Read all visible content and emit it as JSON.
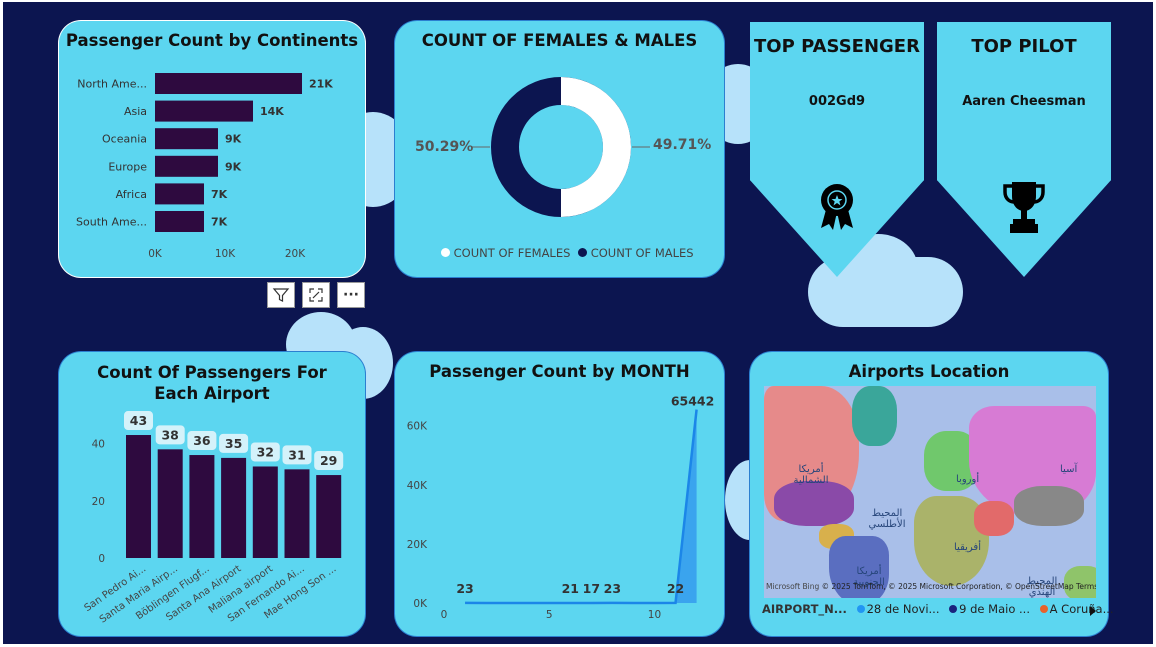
{
  "colors": {
    "background": "#0c1550",
    "card": "#5cd6f0",
    "bar": "#2e0a3f",
    "line": "#1b86e8",
    "cloud": "#b7e2fa"
  },
  "continents": {
    "title": "Passenger Count by Continents",
    "categories": [
      "North Ame...",
      "Asia",
      "Oceania",
      "Europe",
      "Africa",
      "South Ame..."
    ],
    "values": [
      21000,
      14000,
      9000,
      9000,
      7000,
      7000
    ],
    "value_labels": [
      "21K",
      "14K",
      "9K",
      "9K",
      "7K",
      "7K"
    ],
    "x_ticks": [
      "0K",
      "10K",
      "20K"
    ]
  },
  "gender": {
    "title": "COUNT OF FEMALES & MALES",
    "females_pct": "49.71%",
    "males_pct": "50.29%",
    "legend_females": "COUNT OF FEMALES",
    "legend_males": "COUNT OF MALES"
  },
  "top_passenger": {
    "title": "TOP PASSENGER",
    "value": "002Gd9",
    "icon": "award-ribbon-icon"
  },
  "top_pilot": {
    "title": "TOP PILOT",
    "value": "Aaren Cheesman",
    "icon": "trophy-icon"
  },
  "visual_toolbar": {
    "icons": [
      "filter-icon",
      "focus-mode-icon",
      "more-options-icon"
    ],
    "more_label": "···"
  },
  "airports": {
    "title": "Count Of Passengers For Each Airport",
    "y_ticks": [
      "0",
      "20",
      "40"
    ]
  },
  "months": {
    "title": "Passenger Count by MONTH",
    "y_ticks": [
      "0K",
      "20K",
      "40K",
      "60K"
    ],
    "x_ticks": [
      "0",
      "5",
      "10"
    ]
  },
  "map": {
    "title": "Airports Location",
    "labels": [
      "أمريكا الشمالية",
      "المحيط الأطلسي",
      "أوروبا",
      "آسيا",
      "أفريقيا",
      "أمريكا الجنوبية",
      "المحيط الهندي"
    ],
    "attribution_brand": "Microsoft Bing",
    "attribution": "© 2025 TomTom, © 2025 Microsoft Corporation, © OpenStreetMap Terms",
    "legend_field": "AIRPORT_N...",
    "legend_items": [
      {
        "label": "28 de Novi...",
        "color": "#2196f3"
      },
      {
        "label": "9 de Maio ...",
        "color": "#1a237e"
      },
      {
        "label": "A Coruña...",
        "color": "#e8622c"
      }
    ],
    "next_icon": "chevron-right-icon"
  },
  "chart_data": [
    {
      "type": "bar",
      "orientation": "horizontal",
      "title": "Passenger Count by Continents",
      "categories": [
        "North Ame...",
        "Asia",
        "Oceania",
        "Europe",
        "Africa",
        "South Ame..."
      ],
      "values": [
        21000,
        14000,
        9000,
        9000,
        7000,
        7000
      ],
      "xlim": [
        0,
        24000
      ]
    },
    {
      "type": "pie",
      "title": "COUNT OF FEMALES & MALES",
      "categories": [
        "COUNT OF FEMALES",
        "COUNT OF MALES"
      ],
      "values": [
        49.71,
        50.29
      ]
    },
    {
      "type": "bar",
      "title": "Count Of Passengers For Each Airport",
      "categories": [
        "San Pedro Ai...",
        "Santa Maria Airp...",
        "Böblingen Flugf...",
        "Santa Ana Airport",
        "Maliana airport",
        "San Fernando Ai...",
        "Mae Hong Son ..."
      ],
      "values": [
        43,
        38,
        36,
        35,
        32,
        31,
        29
      ],
      "ylim": [
        0,
        50
      ]
    },
    {
      "type": "area",
      "title": "Passenger Count by MONTH",
      "x": [
        1,
        2,
        3,
        4,
        5,
        6,
        7,
        8,
        9,
        10,
        11,
        12
      ],
      "values": [
        23,
        20,
        19,
        18,
        20,
        21,
        17,
        23,
        20,
        21,
        22,
        65442
      ],
      "labeled_points": [
        {
          "x": 1,
          "y": 23,
          "label": "23"
        },
        {
          "x": 6,
          "y": 21,
          "label": "21"
        },
        {
          "x": 7,
          "y": 17,
          "label": "17"
        },
        {
          "x": 8,
          "y": 23,
          "label": "23"
        },
        {
          "x": 11,
          "y": 22,
          "label": "22"
        },
        {
          "x": 12,
          "y": 65442,
          "label": "65442"
        }
      ],
      "xlim": [
        0,
        12.4
      ],
      "ylim": [
        0,
        68000
      ]
    }
  ]
}
